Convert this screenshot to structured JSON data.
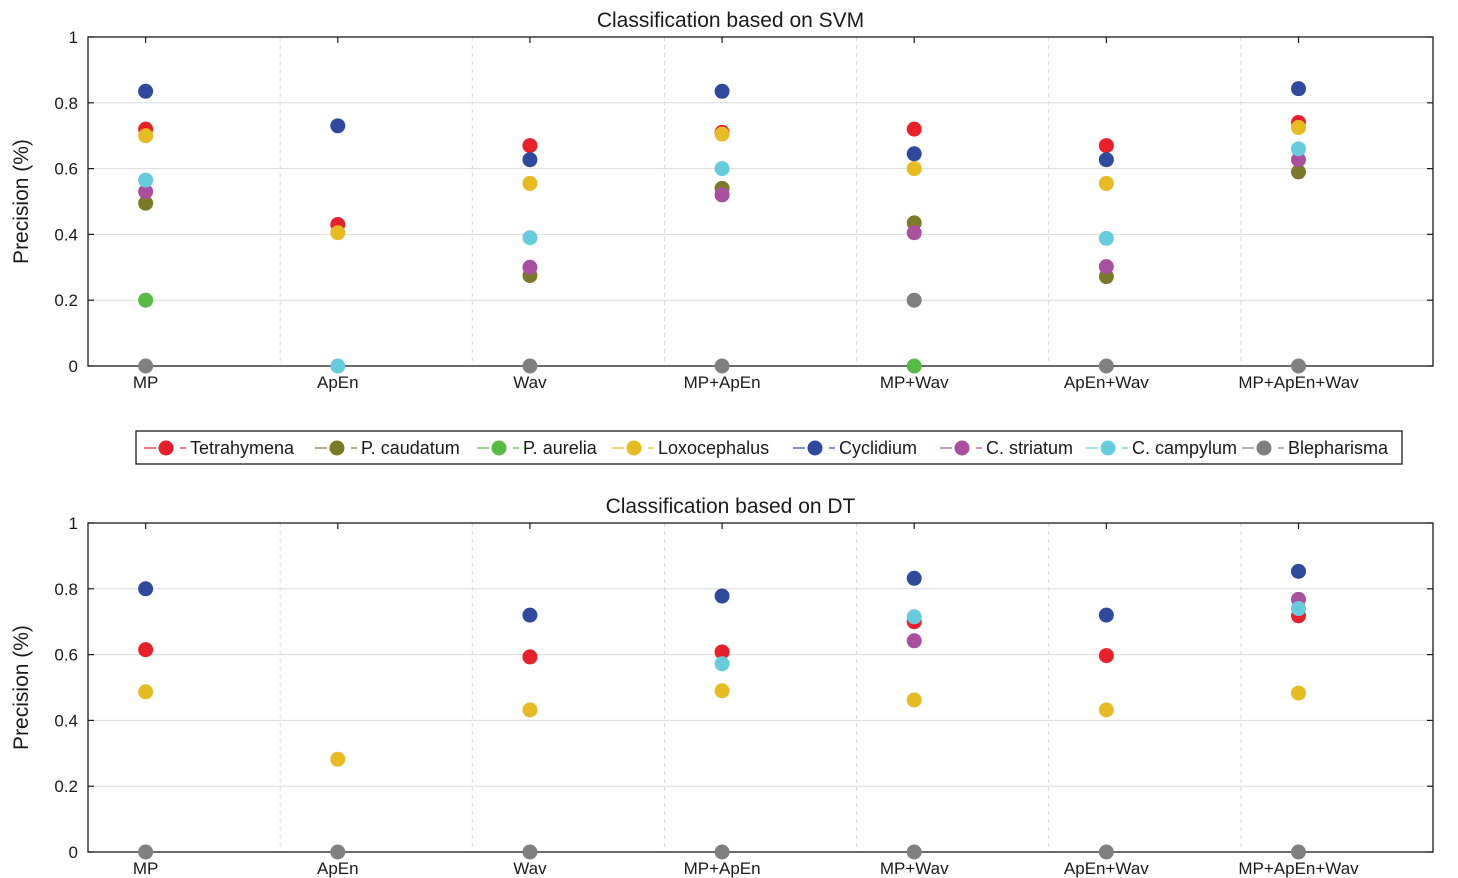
{
  "legend": [
    {
      "name": "Tetrahymena",
      "color": "#e8202a"
    },
    {
      "name": "P. caudatum",
      "color": "#7b7a28"
    },
    {
      "name": "P. aurelia",
      "color": "#55bb44"
    },
    {
      "name": "Loxocephalus",
      "color": "#e8bb22"
    },
    {
      "name": "Cyclidium",
      "color": "#2e4a9e"
    },
    {
      "name": "C. striatum",
      "color": "#aa4fa0"
    },
    {
      "name": "C. campylum",
      "color": "#66ccdd"
    },
    {
      "name": "Blepharisma",
      "color": "#808080"
    }
  ],
  "chart_data": [
    {
      "type": "scatter",
      "title": "Classification based on SVM",
      "xlabel": "",
      "ylabel": "Precision (%)",
      "categories": [
        "MP",
        "ApEn",
        "Wav",
        "MP+ApEn",
        "MP+Wav",
        "ApEn+Wav",
        "MP+ApEn+Wav"
      ],
      "ylim": [
        0,
        1
      ],
      "yticks": [
        "0",
        "0.2",
        "0.4",
        "0.6",
        "0.8",
        "1"
      ],
      "grid": true,
      "series": [
        {
          "name": "Tetrahymena",
          "values": [
            0.72,
            0.43,
            0.67,
            0.71,
            0.72,
            0.67,
            0.74
          ]
        },
        {
          "name": "P. caudatum",
          "values": [
            0.495,
            null,
            0.275,
            0.54,
            0.435,
            0.272,
            0.59
          ]
        },
        {
          "name": "P. aurelia",
          "values": [
            0.2,
            null,
            null,
            null,
            0.0,
            null,
            null
          ]
        },
        {
          "name": "Loxocephalus",
          "values": [
            0.7,
            0.405,
            0.555,
            0.705,
            0.6,
            0.555,
            0.725
          ]
        },
        {
          "name": "Cyclidium",
          "values": [
            0.835,
            0.73,
            0.627,
            0.835,
            0.645,
            0.627,
            0.843
          ]
        },
        {
          "name": "C. striatum",
          "values": [
            0.53,
            null,
            0.3,
            0.52,
            0.405,
            0.302,
            0.627
          ]
        },
        {
          "name": "C. campylum",
          "values": [
            0.565,
            0.0,
            0.39,
            0.6,
            null,
            0.388,
            0.66
          ]
        },
        {
          "name": "Blepharisma",
          "values": [
            0.0,
            null,
            0.0,
            0.0,
            0.2,
            0.0,
            0.0
          ]
        }
      ]
    },
    {
      "type": "scatter",
      "title": "Classification based on DT",
      "xlabel": "",
      "ylabel": "Precision (%)",
      "categories": [
        "MP",
        "ApEn",
        "Wav",
        "MP+ApEn",
        "MP+Wav",
        "ApEn+Wav",
        "MP+ApEn+Wav"
      ],
      "ylim": [
        0,
        1
      ],
      "yticks": [
        "0",
        "0.2",
        "0.4",
        "0.6",
        "0.8",
        "1"
      ],
      "grid": true,
      "series": [
        {
          "name": "Tetrahymena",
          "values": [
            0.615,
            null,
            0.593,
            0.608,
            0.7,
            0.597,
            0.718
          ]
        },
        {
          "name": "P. caudatum",
          "values": [
            null,
            null,
            null,
            null,
            null,
            null,
            null
          ]
        },
        {
          "name": "P. aurelia",
          "values": [
            null,
            null,
            null,
            null,
            null,
            null,
            null
          ]
        },
        {
          "name": "Loxocephalus",
          "values": [
            0.487,
            0.282,
            0.432,
            0.49,
            0.462,
            0.432,
            0.483
          ]
        },
        {
          "name": "Cyclidium",
          "values": [
            0.8,
            null,
            0.72,
            0.778,
            0.832,
            0.72,
            0.853
          ]
        },
        {
          "name": "C. striatum",
          "values": [
            null,
            null,
            null,
            null,
            0.642,
            null,
            0.768
          ]
        },
        {
          "name": "C. campylum",
          "values": [
            null,
            null,
            null,
            0.572,
            0.715,
            null,
            0.74
          ]
        },
        {
          "name": "Blepharisma",
          "values": [
            0.0,
            0.0,
            0.0,
            0.0,
            0.0,
            0.0,
            0.0
          ]
        }
      ]
    }
  ]
}
